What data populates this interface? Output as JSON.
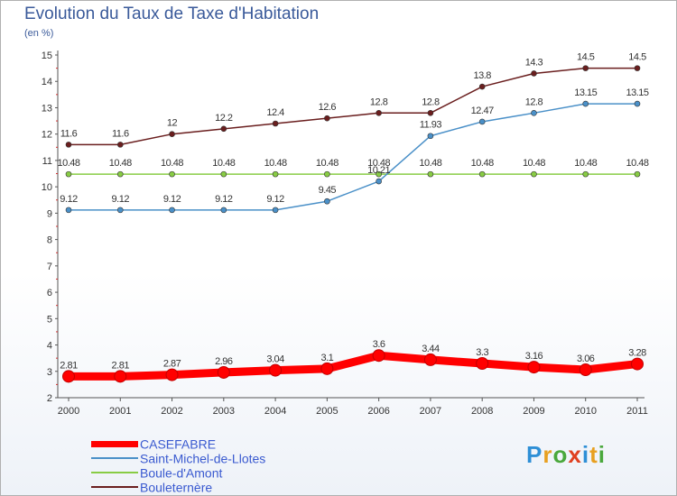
{
  "title": "Evolution du Taux de Taxe d'Habitation",
  "unit": "(en %)",
  "brand": {
    "letters": [
      "P",
      "r",
      "o",
      "x",
      "i",
      "t",
      "i"
    ],
    "colors": [
      "#2e8fd6",
      "#e8a020",
      "#4aa83c",
      "#e04020",
      "#2e8fd6",
      "#e8a020",
      "#4aa83c"
    ]
  },
  "chart_data": {
    "type": "line",
    "x": [
      "2000",
      "2001",
      "2002",
      "2003",
      "2004",
      "2005",
      "2006",
      "2007",
      "2008",
      "2009",
      "2010",
      "2011"
    ],
    "ylim": [
      2,
      15
    ],
    "yticks": [
      "2",
      "3",
      "4",
      "5",
      "6",
      "7",
      "8",
      "9",
      "10",
      "11",
      "12",
      "13",
      "14",
      "15"
    ],
    "grid": false,
    "legend_position": "bottom-left",
    "series": [
      {
        "name": "CASEFABRE",
        "color": "#ff0000",
        "thick": true,
        "values": [
          2.81,
          2.81,
          2.87,
          2.96,
          3.04,
          3.1,
          3.6,
          3.44,
          3.3,
          3.16,
          3.06,
          3.28
        ],
        "labels": [
          "2.81",
          "2.81",
          "2.87",
          "2.96",
          "3.04",
          "3.1",
          "3.6",
          "3.44",
          "3.3",
          "3.16",
          "3.06",
          "3.28"
        ]
      },
      {
        "name": "Saint-Michel-de-Llotes",
        "color": "#4a90c8",
        "thick": false,
        "values": [
          9.12,
          9.12,
          9.12,
          9.12,
          9.12,
          9.45,
          10.21,
          11.93,
          12.47,
          12.8,
          13.15,
          13.15
        ],
        "labels": [
          "9.12",
          "9.12",
          "9.12",
          "9.12",
          "9.12",
          "9.45",
          "10.21",
          "11.93",
          "12.47",
          "12.8",
          "13.15",
          "13.15"
        ]
      },
      {
        "name": "Boule-d'Amont",
        "color": "#88cc44",
        "thick": false,
        "values": [
          10.48,
          10.48,
          10.48,
          10.48,
          10.48,
          10.48,
          10.48,
          10.48,
          10.48,
          10.48,
          10.48,
          10.48
        ],
        "labels": [
          "10.48",
          "10.48",
          "10.48",
          "10.48",
          "10.48",
          "10.48",
          "10.48",
          "10.48",
          "10.48",
          "10.48",
          "10.48",
          "10.48"
        ]
      },
      {
        "name": "Bouleternère",
        "color": "#6a1e1e",
        "thick": false,
        "values": [
          11.6,
          11.6,
          12,
          12.2,
          12.4,
          12.6,
          12.8,
          12.8,
          13.8,
          14.3,
          14.5,
          14.5
        ],
        "labels": [
          "11.6",
          "11.6",
          "12",
          "12.2",
          "12.4",
          "12.6",
          "12.8",
          "12.8",
          "13.8",
          "14.3",
          "14.5",
          "14.5"
        ]
      }
    ]
  }
}
